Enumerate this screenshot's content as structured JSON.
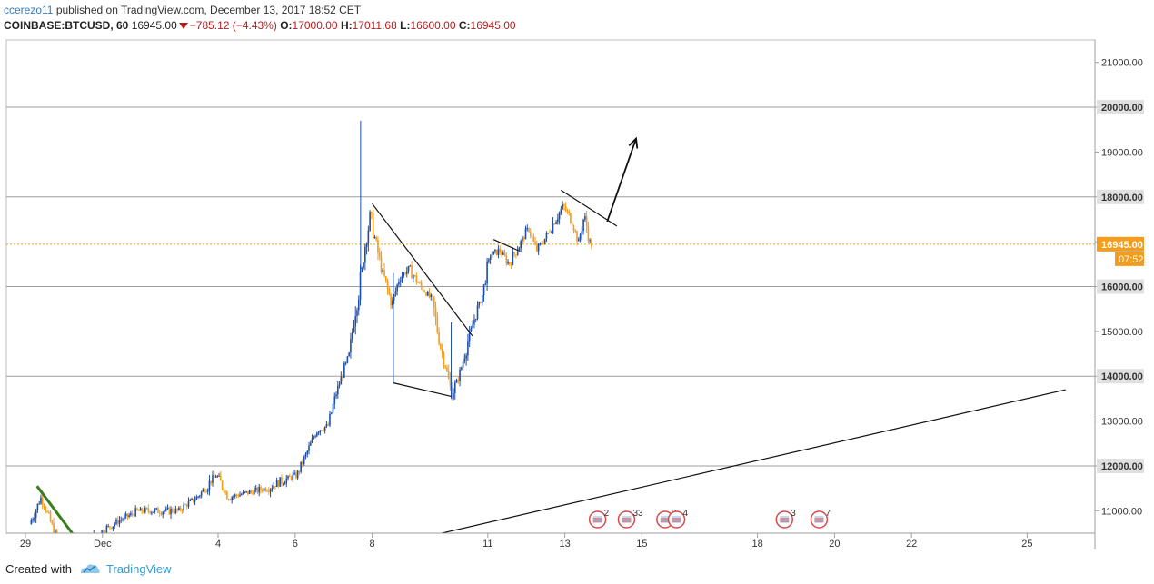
{
  "header": {
    "author": "ccerezo11",
    "published_text": " published on TradingView.com, December 13, 2017 18:52 CET",
    "symbol": "COINBASE:BTCUSD, 60",
    "last": "16945.00",
    "change": "−785.12 (−4.43%)",
    "o_label": "O:",
    "o_value": "17000.00",
    "h_label": "H:",
    "h_value": "17011.68",
    "l_label": "L:",
    "l_value": "16600.00",
    "c_label": "C:",
    "c_value": "16945.00"
  },
  "footer": {
    "created_with": "Created with",
    "brand": "TradingView"
  },
  "colors": {
    "up_candle": "#1e4fa8",
    "down_candle": "#f59c1a",
    "price_line": "#f59c1a",
    "level_line": "#9e9e9e",
    "trend_line": "#111111",
    "green_line": "#3a7d1e",
    "event_flag": "#d84a4a"
  },
  "chart_data": {
    "type": "candlestick",
    "ylim": [
      10500,
      21500
    ],
    "y_ticks": [
      "11000.00",
      "12000.00",
      "13000.00",
      "14000.00",
      "15000.00",
      "16000.00",
      "17000.00",
      "18000.00",
      "19000.00",
      "20000.00",
      "21000.00"
    ],
    "x_ticks": [
      {
        "label": "29",
        "day": 0
      },
      {
        "label": "Dec",
        "day": 2
      },
      {
        "label": "4",
        "day": 5
      },
      {
        "label": "6",
        "day": 7
      },
      {
        "label": "8",
        "day": 9
      },
      {
        "label": "11",
        "day": 12
      },
      {
        "label": "13",
        "day": 14
      },
      {
        "label": "15",
        "day": 16
      },
      {
        "label": "18",
        "day": 19
      },
      {
        "label": "20",
        "day": 21
      },
      {
        "label": "22",
        "day": 23
      },
      {
        "label": "25",
        "day": 26
      }
    ],
    "current_price": {
      "value": 16945,
      "label": "16945.00",
      "countdown": "07:52"
    },
    "horizontal_levels": [
      {
        "value": 12000,
        "label": "12000.00"
      },
      {
        "value": 14000,
        "label": "14000.00"
      },
      {
        "value": 16000,
        "label": "16000.00"
      },
      {
        "value": 18000,
        "label": "18000.00"
      },
      {
        "value": 20000,
        "label": "20000.00"
      }
    ],
    "price_path": [
      [
        0.15,
        10700
      ],
      [
        0.45,
        11300
      ],
      [
        0.8,
        10500
      ],
      [
        1.2,
        10300
      ],
      [
        1.8,
        10400
      ],
      [
        2.5,
        10800
      ],
      [
        3.0,
        11000
      ],
      [
        3.5,
        11000
      ],
      [
        4.0,
        11000
      ],
      [
        4.5,
        11300
      ],
      [
        5.0,
        11800
      ],
      [
        5.3,
        11300
      ],
      [
        5.8,
        11400
      ],
      [
        6.3,
        11500
      ],
      [
        6.8,
        11700
      ],
      [
        7.1,
        11800
      ],
      [
        7.3,
        12200
      ],
      [
        7.6,
        12800
      ],
      [
        7.9,
        12900
      ],
      [
        8.1,
        13600
      ],
      [
        8.3,
        14100
      ],
      [
        8.45,
        14500
      ],
      [
        8.6,
        15500
      ],
      [
        8.75,
        16200
      ],
      [
        8.85,
        16900
      ],
      [
        9.0,
        17600
      ],
      [
        9.15,
        16900
      ],
      [
        9.35,
        16200
      ],
      [
        9.55,
        15600
      ],
      [
        9.75,
        16200
      ],
      [
        10.0,
        16400
      ],
      [
        10.3,
        16000
      ],
      [
        10.6,
        15700
      ],
      [
        10.8,
        14700
      ],
      [
        10.95,
        14200
      ],
      [
        11.1,
        13600
      ],
      [
        11.3,
        14000
      ],
      [
        11.5,
        14700
      ],
      [
        11.7,
        15300
      ],
      [
        11.9,
        15800
      ],
      [
        12.1,
        16700
      ],
      [
        12.35,
        16800
      ],
      [
        12.6,
        16500
      ],
      [
        12.85,
        16900
      ],
      [
        13.1,
        17300
      ],
      [
        13.3,
        16800
      ],
      [
        13.55,
        17100
      ],
      [
        13.8,
        17500
      ],
      [
        14.0,
        17800
      ],
      [
        14.2,
        17500
      ],
      [
        14.4,
        17000
      ],
      [
        14.55,
        17600
      ],
      [
        14.7,
        16950
      ]
    ],
    "annotations": {
      "trend_lines": [
        {
          "from": [
            9.0,
            17850
          ],
          "to": [
            11.6,
            14900
          ]
        },
        {
          "from": [
            9.55,
            13850
          ],
          "to": [
            11.05,
            13550
          ]
        },
        {
          "from": [
            12.15,
            17050
          ],
          "to": [
            12.8,
            16800
          ]
        },
        {
          "from": [
            13.9,
            18150
          ],
          "to": [
            15.35,
            17350
          ]
        },
        {
          "from": [
            10.3,
            10400
          ],
          "to": [
            27.0,
            13700
          ]
        }
      ],
      "green_trend_line": {
        "from": [
          0.3,
          11550
        ],
        "to": [
          1.3,
          10400
        ]
      },
      "arrow": {
        "from": [
          15.1,
          17450
        ],
        "to": [
          15.85,
          19300
        ]
      }
    },
    "events": [
      {
        "day": 14.85,
        "count": "2"
      },
      {
        "day": 15.6,
        "count": "33"
      },
      {
        "day": 16.6,
        "count": "3"
      },
      {
        "day": 16.9,
        "count": "4"
      },
      {
        "day": 19.7,
        "count": "3"
      },
      {
        "day": 20.6,
        "count": "7"
      }
    ]
  }
}
